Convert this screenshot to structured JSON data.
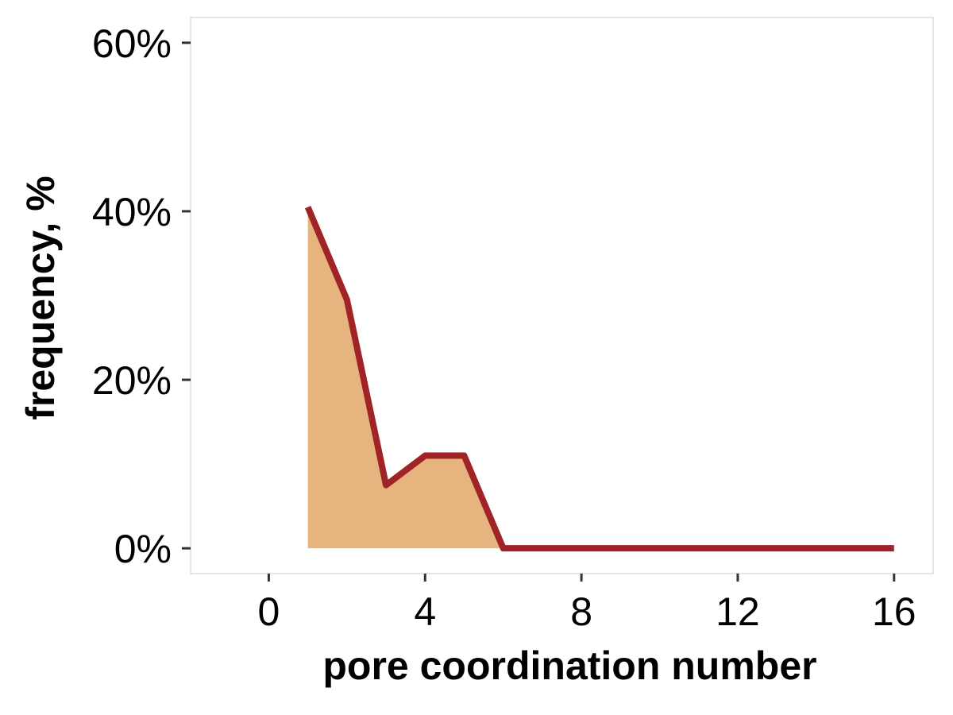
{
  "chart_data": {
    "type": "area",
    "title": "",
    "xlabel": "pore coordination number",
    "ylabel": "frequency, %",
    "x": [
      1,
      2,
      3,
      4,
      5,
      6,
      7,
      8,
      9,
      10,
      11,
      12,
      13,
      14,
      15,
      16
    ],
    "series": [
      {
        "values": [
          40.5,
          29.5,
          7.5,
          11.0,
          11.0,
          0,
          0,
          0,
          0,
          0,
          0,
          0,
          0,
          0,
          0,
          0
        ]
      }
    ],
    "xlim": [
      -2,
      17
    ],
    "ylim": [
      -3,
      63
    ],
    "xticks": [
      0,
      4,
      8,
      12,
      16
    ],
    "xtick_labels": [
      "0",
      "4",
      "8",
      "12",
      "16"
    ],
    "yticks": [
      0,
      20,
      40,
      60
    ],
    "ytick_labels": [
      "0%",
      "20%",
      "40%",
      "60%"
    ],
    "grid": false,
    "legend": "none",
    "colors": {
      "fill": "#E6B47F",
      "line": "#A02327",
      "axis": "#333333",
      "panel_border": "#CCCCCC"
    }
  }
}
